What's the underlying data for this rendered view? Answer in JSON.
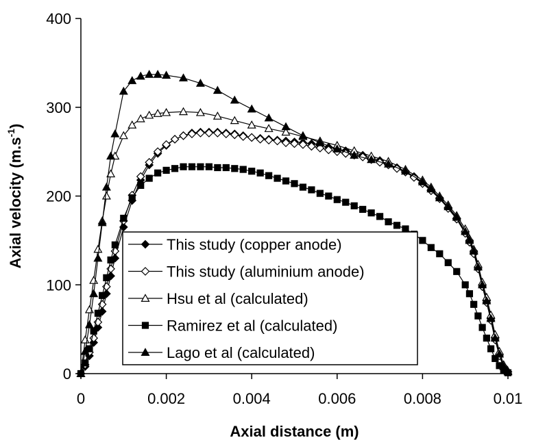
{
  "chart_data": {
    "type": "line",
    "xlabel": "Axial distance (m)",
    "ylabel_main": "Axial velocity (m.s",
    "ylabel_sup": "-1",
    "ylabel_tail": ")",
    "xlim": [
      0,
      0.01
    ],
    "ylim": [
      0,
      400
    ],
    "x_ticks": [
      0,
      0.002,
      0.004,
      0.006,
      0.008,
      0.01
    ],
    "x_tick_labels": [
      "0",
      "0.002",
      "0.004",
      "0.006",
      "0.008",
      "0.01"
    ],
    "y_ticks": [
      0,
      100,
      200,
      300,
      400
    ],
    "y_tick_labels": [
      "0",
      "100",
      "200",
      "300",
      "400"
    ],
    "grid": false,
    "legend_position": "center-bottom",
    "series": [
      {
        "name": "This study (copper anode)",
        "marker": "diamond-filled",
        "x": [
          0,
          0.0001,
          0.0002,
          0.0003,
          0.0004,
          0.0005,
          0.0006,
          0.0007,
          0.0008,
          0.001,
          0.0012,
          0.0014,
          0.0016,
          0.0018,
          0.002,
          0.0022,
          0.0024,
          0.0026,
          0.0028,
          0.003,
          0.0032,
          0.0034,
          0.0036,
          0.0038,
          0.004,
          0.0042,
          0.0044,
          0.0046,
          0.0048,
          0.005,
          0.0052,
          0.0054,
          0.0056,
          0.0058,
          0.006,
          0.0062,
          0.0064,
          0.0066,
          0.0068,
          0.007,
          0.0072,
          0.0074,
          0.0076,
          0.0078,
          0.008,
          0.0082,
          0.0084,
          0.0086,
          0.0088,
          0.009,
          0.0091,
          0.0092,
          0.0093,
          0.0094,
          0.0095,
          0.0096,
          0.0097,
          0.0098,
          0.0099,
          0.01
        ],
        "y": [
          0,
          8,
          20,
          35,
          52,
          70,
          90,
          110,
          130,
          165,
          195,
          218,
          235,
          248,
          257,
          264,
          268,
          271,
          272,
          272,
          272,
          271,
          270,
          268,
          266,
          265,
          264,
          263,
          262,
          261,
          260,
          259,
          257,
          255,
          253,
          251,
          249,
          246,
          243,
          240,
          236,
          232,
          228,
          222,
          215,
          207,
          198,
          187,
          175,
          160,
          150,
          138,
          120,
          100,
          82,
          62,
          40,
          22,
          8,
          2
        ]
      },
      {
        "name": "This study (aluminium anode)",
        "marker": "diamond-open",
        "x": [
          0,
          0.0001,
          0.0002,
          0.0003,
          0.0004,
          0.0005,
          0.0006,
          0.0007,
          0.0008,
          0.001,
          0.0012,
          0.0014,
          0.0016,
          0.0018,
          0.002,
          0.0022,
          0.0024,
          0.0026,
          0.0028,
          0.003,
          0.0032,
          0.0034,
          0.0036,
          0.0038,
          0.004,
          0.0042,
          0.0044,
          0.0046,
          0.0048,
          0.005,
          0.0052,
          0.0054,
          0.0056,
          0.0058,
          0.006,
          0.0062,
          0.0064,
          0.0066,
          0.0068,
          0.007,
          0.0072,
          0.0074,
          0.0076,
          0.0078,
          0.008,
          0.0082,
          0.0084,
          0.0086,
          0.0088,
          0.009,
          0.0091,
          0.0092,
          0.0093,
          0.0094,
          0.0095,
          0.0096,
          0.0097,
          0.0098,
          0.0099,
          0.01
        ],
        "y": [
          0,
          10,
          24,
          40,
          58,
          78,
          98,
          118,
          138,
          172,
          201,
          222,
          238,
          250,
          258,
          264,
          268,
          270,
          271,
          271,
          271,
          270,
          269,
          267,
          266,
          264,
          263,
          262,
          260,
          259,
          258,
          256,
          254,
          252,
          250,
          248,
          246,
          244,
          241,
          238,
          235,
          231,
          227,
          221,
          214,
          206,
          197,
          186,
          174,
          158,
          148,
          135,
          118,
          98,
          80,
          60,
          38,
          20,
          7,
          2
        ]
      },
      {
        "name": "Hsu et al (calculated)",
        "marker": "triangle-open",
        "x": [
          0,
          0.0001,
          0.0002,
          0.0003,
          0.0004,
          0.0005,
          0.0006,
          0.0007,
          0.0008,
          0.001,
          0.0012,
          0.0014,
          0.0016,
          0.0018,
          0.002,
          0.0024,
          0.0028,
          0.0032,
          0.0036,
          0.004,
          0.0044,
          0.0048,
          0.0052,
          0.0056,
          0.006,
          0.0064,
          0.0068,
          0.0072,
          0.0076,
          0.008,
          0.0082,
          0.0084,
          0.0086,
          0.0088,
          0.009,
          0.0091,
          0.0092,
          0.0093,
          0.0094,
          0.0095,
          0.0096,
          0.0097,
          0.0098,
          0.0099,
          0.01
        ],
        "y": [
          0,
          38,
          72,
          105,
          140,
          172,
          200,
          225,
          245,
          268,
          280,
          287,
          291,
          293,
          294,
          295,
          294,
          290,
          285,
          280,
          276,
          272,
          267,
          262,
          257,
          251,
          245,
          239,
          230,
          218,
          210,
          200,
          190,
          178,
          163,
          152,
          140,
          123,
          103,
          86,
          66,
          44,
          25,
          10,
          3
        ]
      },
      {
        "name": "Ramirez et al (calculated)",
        "marker": "square-filled",
        "x": [
          0,
          0.0001,
          0.0002,
          0.0003,
          0.0004,
          0.0005,
          0.0006,
          0.0007,
          0.0008,
          0.001,
          0.0012,
          0.0014,
          0.0016,
          0.0018,
          0.002,
          0.0022,
          0.0024,
          0.0026,
          0.0028,
          0.003,
          0.0032,
          0.0034,
          0.0036,
          0.0038,
          0.004,
          0.0042,
          0.0044,
          0.0046,
          0.0048,
          0.005,
          0.0052,
          0.0054,
          0.0056,
          0.0058,
          0.006,
          0.0062,
          0.0064,
          0.0066,
          0.0068,
          0.007,
          0.0072,
          0.0074,
          0.0076,
          0.0078,
          0.008,
          0.0082,
          0.0084,
          0.0086,
          0.0088,
          0.009,
          0.0091,
          0.0092,
          0.0093,
          0.0094,
          0.0095,
          0.0096,
          0.0097,
          0.0098,
          0.0099,
          0.01
        ],
        "y": [
          0,
          12,
          28,
          48,
          68,
          88,
          108,
          128,
          145,
          175,
          198,
          212,
          220,
          226,
          229,
          231,
          233,
          233,
          233,
          233,
          232,
          232,
          231,
          230,
          228,
          226,
          223,
          220,
          217,
          214,
          210,
          207,
          203,
          200,
          196,
          193,
          189,
          185,
          181,
          177,
          171,
          167,
          163,
          157,
          150,
          142,
          135,
          125,
          115,
          100,
          90,
          78,
          65,
          52,
          40,
          28,
          17,
          9,
          4,
          1
        ]
      },
      {
        "name": "Lago et al (calculated)",
        "marker": "triangle-filled",
        "x": [
          0,
          0.0001,
          0.0002,
          0.0003,
          0.0004,
          0.0005,
          0.0006,
          0.0007,
          0.0008,
          0.001,
          0.0012,
          0.0014,
          0.0016,
          0.0018,
          0.002,
          0.0024,
          0.0028,
          0.0032,
          0.0036,
          0.004,
          0.0044,
          0.0048,
          0.0052,
          0.0056,
          0.006,
          0.0064,
          0.0068,
          0.0072,
          0.0076,
          0.008,
          0.0082,
          0.0084,
          0.0086,
          0.0088,
          0.009,
          0.0091,
          0.0092,
          0.0093,
          0.0094,
          0.0095,
          0.0096,
          0.0097,
          0.0098,
          0.0099,
          0.01
        ],
        "y": [
          0,
          25,
          55,
          90,
          130,
          170,
          210,
          245,
          270,
          318,
          330,
          335,
          337,
          337,
          336,
          333,
          327,
          319,
          308,
          298,
          288,
          278,
          268,
          260,
          253,
          246,
          241,
          236,
          228,
          216,
          208,
          198,
          188,
          176,
          160,
          150,
          138,
          120,
          100,
          82,
          62,
          40,
          22,
          8,
          2
        ]
      }
    ]
  }
}
